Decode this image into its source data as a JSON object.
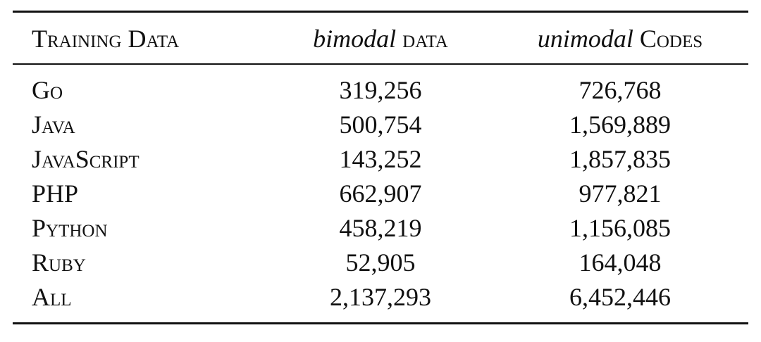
{
  "table": {
    "header": [
      [
        "Training Data"
      ],
      [
        "bimodal",
        "data"
      ],
      [
        "unimodal",
        "Codes"
      ]
    ],
    "rows": [
      [
        "Go",
        "319,256",
        "726,768"
      ],
      [
        "Java",
        "500,754",
        "1,569,889"
      ],
      [
        "JavaScript",
        "143,252",
        "1,857,835"
      ],
      [
        "PHP",
        "662,907",
        "977,821"
      ],
      [
        "Python",
        "458,219",
        "1,156,085"
      ],
      [
        "Ruby",
        "52,905",
        "164,048"
      ],
      [
        "All",
        "2,137,293",
        "6,452,446"
      ]
    ]
  }
}
